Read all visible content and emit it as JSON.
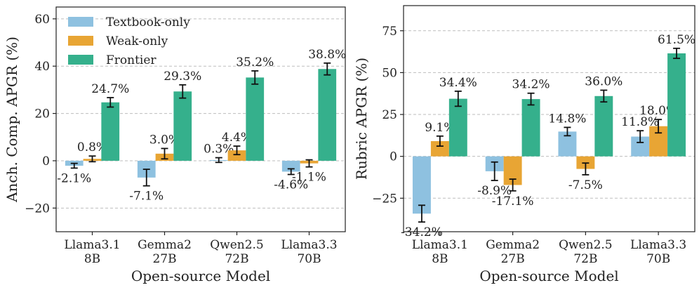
{
  "series_colors": {
    "Textbook-only": "#8ec1e0",
    "Weak-only": "#e8a534",
    "Frontier": "#35b08c"
  },
  "chart_data": [
    {
      "type": "bar",
      "xlabel": "Open-source Model",
      "ylabel": "Anch. Comp. APGR (%)",
      "ylim": [
        -30,
        65
      ],
      "yticks": [
        -20,
        0,
        20,
        40,
        60
      ],
      "grid": true,
      "legend": "top-left",
      "categories": [
        "Llama3.1|8B",
        "Gemma2|27B",
        "Qwen2.5|72B",
        "Llama3.3|70B"
      ],
      "series": [
        {
          "name": "Textbook-only",
          "values": [
            -2.1,
            -7.1,
            0.3,
            -4.6
          ],
          "errors": [
            1.0,
            3.5,
            1.0,
            1.2
          ],
          "labels": [
            "-2.1%",
            "-7.1%",
            "0.3%",
            "-4.6%"
          ]
        },
        {
          "name": "Weak-only",
          "values": [
            0.8,
            3.0,
            4.4,
            -1.1
          ],
          "errors": [
            1.2,
            2.2,
            1.8,
            1.5
          ],
          "labels": [
            "0.8%",
            "3.0%",
            "4.4%",
            "-1.1%"
          ]
        },
        {
          "name": "Frontier",
          "values": [
            24.7,
            29.3,
            35.2,
            38.8
          ],
          "errors": [
            2.0,
            2.8,
            2.8,
            2.5
          ],
          "labels": [
            "24.7%",
            "29.3%",
            "35.2%",
            "38.8%"
          ]
        }
      ]
    },
    {
      "type": "bar",
      "xlabel": "Open-source Model",
      "ylabel": "Rubric APGR (%)",
      "ylim": [
        -45,
        90
      ],
      "yticks": [
        -25,
        0,
        25,
        50,
        75
      ],
      "grid": true,
      "legend": "none",
      "categories": [
        "Llama3.1|8B",
        "Gemma2|27B",
        "Qwen2.5|72B",
        "Llama3.3|70B"
      ],
      "series": [
        {
          "name": "Textbook-only",
          "values": [
            -34.2,
            -8.9,
            14.8,
            11.8
          ],
          "errors": [
            5.0,
            5.5,
            2.5,
            3.5
          ],
          "labels": [
            "-34.2%",
            "-8.9%",
            "14.8%",
            "11.8%"
          ]
        },
        {
          "name": "Weak-only",
          "values": [
            9.1,
            -17.1,
            -7.5,
            18.0
          ],
          "errors": [
            3.0,
            3.5,
            3.5,
            4.0
          ],
          "labels": [
            "9.1%",
            "-17.1%",
            "-7.5%",
            "18.0%"
          ]
        },
        {
          "name": "Frontier",
          "values": [
            34.4,
            34.2,
            36.0,
            61.5
          ],
          "errors": [
            4.5,
            3.5,
            3.5,
            3.0
          ],
          "labels": [
            "34.4%",
            "34.2%",
            "36.0%",
            "61.5%"
          ]
        }
      ]
    }
  ]
}
